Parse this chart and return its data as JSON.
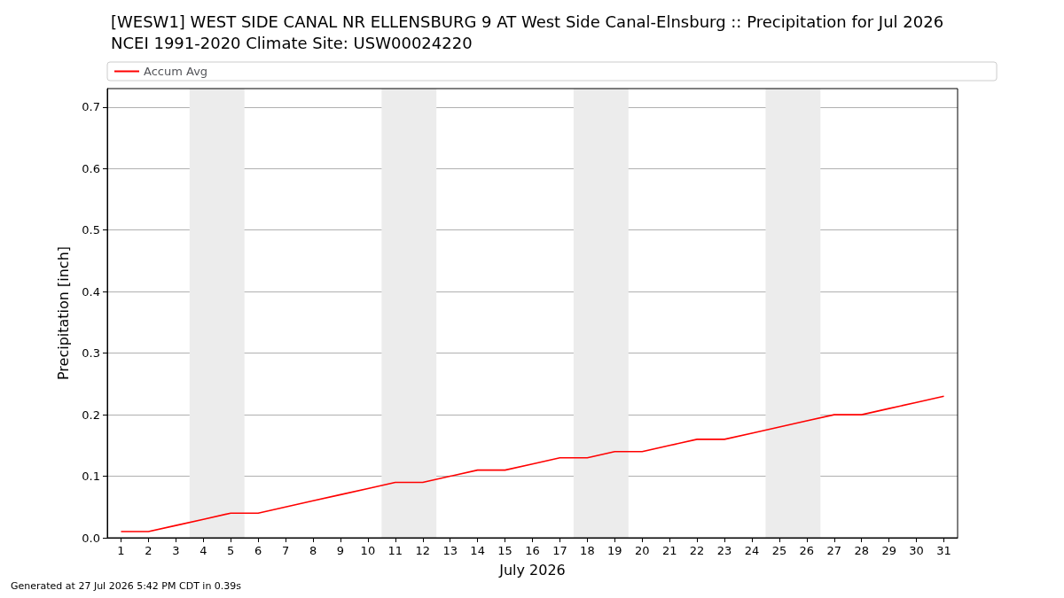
{
  "chart_data": {
    "type": "line",
    "title": "[WESW1] WEST SIDE CANAL NR ELLENSBURG 9 AT West Side Canal-Elnsburg :: Precipitation for Jul 2026",
    "subtitle": "NCEI 1991-2020 Climate Site: USW00024220",
    "xlabel": "July 2026",
    "ylabel": "Precipitation [inch]",
    "x": [
      1,
      2,
      3,
      4,
      5,
      6,
      7,
      8,
      9,
      10,
      11,
      12,
      13,
      14,
      15,
      16,
      17,
      18,
      19,
      20,
      21,
      22,
      23,
      24,
      25,
      26,
      27,
      28,
      29,
      30,
      31
    ],
    "series": [
      {
        "name": "Accum Avg",
        "color": "#ff0000",
        "values": [
          0.01,
          0.01,
          0.02,
          0.03,
          0.04,
          0.04,
          0.05,
          0.06,
          0.07,
          0.08,
          0.09,
          0.09,
          0.1,
          0.11,
          0.11,
          0.12,
          0.13,
          0.13,
          0.14,
          0.14,
          0.15,
          0.16,
          0.16,
          0.17,
          0.18,
          0.19,
          0.2,
          0.2,
          0.21,
          0.22,
          0.23
        ]
      }
    ],
    "xlim": [
      0.5,
      31.5
    ],
    "xticks": [
      1,
      2,
      3,
      4,
      5,
      6,
      7,
      8,
      9,
      10,
      11,
      12,
      13,
      14,
      15,
      16,
      17,
      18,
      19,
      20,
      21,
      22,
      23,
      24,
      25,
      26,
      27,
      28,
      29,
      30,
      31
    ],
    "ylim": [
      0,
      0.73
    ],
    "yticks": [
      {
        "value": 0,
        "label": "0.0"
      },
      {
        "value": 0.1,
        "label": "0.1"
      },
      {
        "value": 0.2,
        "label": "0.2"
      },
      {
        "value": 0.3,
        "label": "0.3"
      },
      {
        "value": 0.4,
        "label": "0.4"
      },
      {
        "value": 0.5,
        "label": "0.5"
      },
      {
        "value": 0.6,
        "label": "0.6"
      },
      {
        "value": 0.7,
        "label": "0.7"
      }
    ],
    "bands": [
      {
        "axis": "x",
        "from": 3.5,
        "to": 5.5,
        "color": "#ececec"
      },
      {
        "axis": "x",
        "from": 10.5,
        "to": 12.5,
        "color": "#ececec"
      },
      {
        "axis": "x",
        "from": 17.5,
        "to": 19.5,
        "color": "#ececec"
      },
      {
        "axis": "x",
        "from": 24.5,
        "to": 26.5,
        "color": "#ececec"
      }
    ],
    "grid": "y",
    "legend": "top",
    "marker": "none",
    "line_style": "solid",
    "annotations": [
      "Generated at 27 Jul 2026 5:42 PM CDT in 0.39s"
    ]
  }
}
